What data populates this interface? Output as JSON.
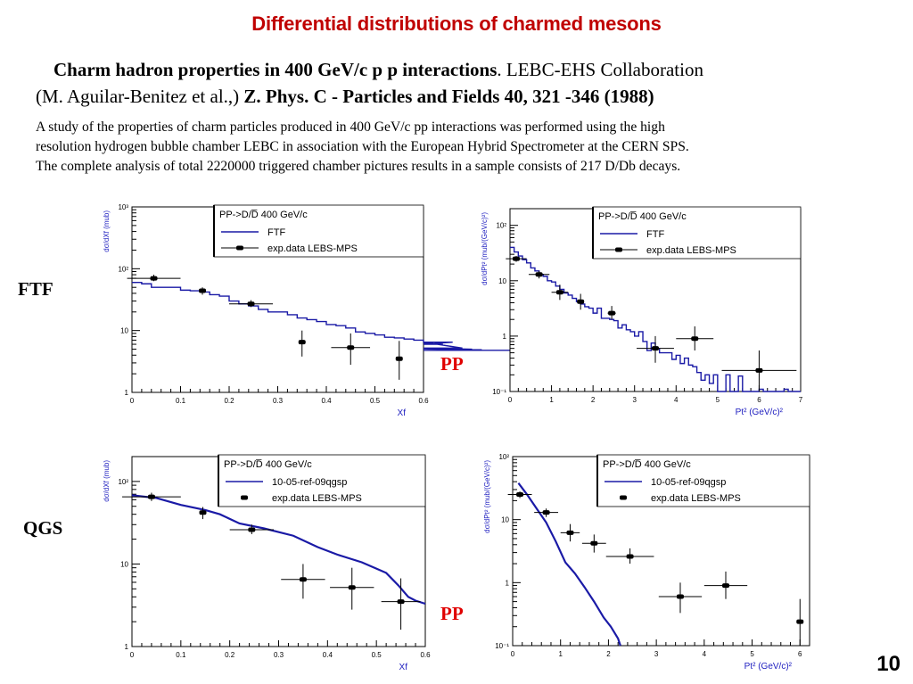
{
  "slide": {
    "title": "Differential distributions of charmed mesons",
    "reference": {
      "line1_bold": "Charm hadron properties in 400 GeV/c p p interactions",
      "line1_rest": ".  LEBC-EHS Collaboration",
      "line2_plain": "(M. Aguilar-Benitez et al.,) ",
      "line2_bold": "Z. Phys. C - Particles and Fields 40, 321 -346 (1988)"
    },
    "abstract": [
      "A study of the properties of charm particles produced in 400 GeV/c pp interactions was performed using the high",
      "resolution hydrogen bubble chamber LEBC in association with the European Hybrid Spectrometer at the CERN SPS.",
      "The complete analysis  of total 2220000 triggered chamber pictures results in a sample consists of 217 D/Db  decays."
    ],
    "row_labels": [
      "FTF",
      "QGS"
    ],
    "pp_labels": [
      "PP",
      "PP"
    ],
    "page_number": "10"
  },
  "colors": {
    "title": "#c00000",
    "pp_label": "#e00000",
    "model_line": "#1a1aa6",
    "axis_label": "#2020c0"
  },
  "chart_data": [
    {
      "id": "ftf-xf",
      "type": "line",
      "legend_title": "PP->D/D̅  400 GeV/c",
      "legend": [
        "FTF",
        "exp.data LEBS-MPS"
      ],
      "legend_placement": "top-right",
      "xlabel": "Xf",
      "ylabel": "dσ/dXf (mub)",
      "xlim": [
        0,
        0.6
      ],
      "ylim": [
        1,
        1000
      ],
      "yscale": "log",
      "xticks": [
        "0",
        "0.1",
        "0.2",
        "0.3",
        "0.4",
        "0.5",
        "0.6"
      ],
      "yticks": [
        {
          "v": 1,
          "label": "1"
        },
        {
          "v": 10,
          "label": "10"
        },
        {
          "v": 100,
          "label": "10²"
        },
        {
          "v": 1000,
          "label": "10³"
        }
      ],
      "series": [
        {
          "name": "FTF",
          "style": "histogram",
          "bin_width": 0.02,
          "values": [
            60,
            57,
            50,
            50,
            50,
            45,
            44,
            42,
            38,
            36,
            30,
            27,
            25,
            22,
            20,
            20,
            18,
            16,
            15,
            14,
            12.5,
            12,
            11,
            9.5,
            9,
            8.5,
            7.8,
            7.6,
            7.3,
            7.0,
            6.5,
            6.3,
            6.0,
            6.5,
            5.2,
            5.0,
            4.9,
            4.8,
            4.8,
            4.8
          ]
        },
        {
          "name": "exp.data LEBS-MPS",
          "style": "points",
          "points": [
            {
              "x": 0.045,
              "y": 70,
              "xerr": 0.055,
              "ylo": 63,
              "yhi": 80
            },
            {
              "x": 0.145,
              "y": 44,
              "xerr": 0.0,
              "ylo": 38,
              "yhi": 50
            },
            {
              "x": 0.245,
              "y": 27,
              "xerr": 0.045,
              "ylo": 24,
              "yhi": 31
            },
            {
              "x": 0.35,
              "y": 6.5,
              "xerr": 0.0,
              "ylo": 3.8,
              "yhi": 10.0
            },
            {
              "x": 0.45,
              "y": 5.3,
              "xerr": 0.04,
              "ylo": 2.8,
              "yhi": 9.0
            },
            {
              "x": 0.55,
              "y": 3.5,
              "xerr": 0.0,
              "ylo": 1.6,
              "yhi": 6.8
            }
          ]
        }
      ]
    },
    {
      "id": "ftf-pt2",
      "type": "line",
      "legend_title": "PP->D/D̅  400 GeV/c",
      "legend": [
        "FTF",
        "exp.data LEBS-MPS"
      ],
      "legend_placement": "top-right",
      "xlabel": "Pt² (GeV/c)²",
      "ylabel": "dσ/dPt² (mub/(GeV/c)²)",
      "xlim": [
        0,
        7
      ],
      "ylim": [
        0.1,
        200
      ],
      "yscale": "log",
      "xticks": [
        "0",
        "1",
        "2",
        "3",
        "4",
        "5",
        "6",
        "7"
      ],
      "yticks": [
        {
          "v": 0.1,
          "label": "10⁻¹"
        },
        {
          "v": 1,
          "label": "1"
        },
        {
          "v": 10,
          "label": "10"
        },
        {
          "v": 100,
          "label": "10²"
        }
      ],
      "series": [
        {
          "name": "FTF",
          "style": "histogram",
          "bin_width": 0.1,
          "values": [
            40,
            33,
            28,
            24,
            21,
            17,
            15,
            13,
            12,
            10,
            9.5,
            8,
            7,
            6,
            5.5,
            4.8,
            4.2,
            3.8,
            3.4,
            3.2,
            2.6,
            3.2,
            2.1,
            2.1,
            2.0,
            1.9,
            1.4,
            1.6,
            1.3,
            1.2,
            1.0,
            1.2,
            0.8,
            0.55,
            0.75,
            0.6,
            0.5,
            0.5,
            0.5,
            0.38,
            0.45,
            0.32,
            0.4,
            0.3,
            0.28,
            0.22,
            0.16,
            0.2,
            0.14,
            0.2,
            0.1,
            0.1,
            0.2,
            0.1,
            0.1,
            0.19,
            0.1,
            0.1,
            0.1,
            0.1,
            0.11,
            0.1,
            0.1,
            0.1,
            0.1,
            0.1,
            0.11,
            0.1,
            0.1,
            0.1
          ]
        },
        {
          "name": "exp.data LEBS-MPS",
          "style": "points",
          "points": [
            {
              "x": 0.15,
              "y": 25,
              "xerr": 0.25,
              "ylo": 22,
              "yhi": 28
            },
            {
              "x": 0.7,
              "y": 13,
              "xerr": 0.25,
              "ylo": 11,
              "yhi": 15
            },
            {
              "x": 1.2,
              "y": 6.2,
              "xerr": 0.2,
              "ylo": 4.5,
              "yhi": 8.5
            },
            {
              "x": 1.7,
              "y": 4.2,
              "xerr": 0.0,
              "ylo": 3.0,
              "yhi": 5.8
            },
            {
              "x": 2.45,
              "y": 2.6,
              "xerr": 0.1,
              "ylo": 2.0,
              "yhi": 3.5
            },
            {
              "x": 3.5,
              "y": 0.6,
              "xerr": 0.45,
              "ylo": 0.33,
              "yhi": 1.0
            },
            {
              "x": 4.45,
              "y": 0.9,
              "xerr": 0.45,
              "ylo": 0.55,
              "yhi": 1.5
            },
            {
              "x": 6.0,
              "y": 0.24,
              "xerr": 0.9,
              "ylo": 0.1,
              "yhi": 0.55
            }
          ]
        }
      ]
    },
    {
      "id": "qgs-xf",
      "type": "line",
      "legend_title": "PP->D/D̅  400 GeV/c",
      "legend": [
        "10-05-ref-09qgsp",
        "exp.data LEBS-MPS"
      ],
      "legend_placement": "top-right",
      "xlabel": "Xf",
      "ylabel": "dσ/dXf (mub)",
      "xlim": [
        0,
        0.6
      ],
      "ylim": [
        1,
        200
      ],
      "yscale": "log",
      "xticks": [
        "0",
        "0.1",
        "0.2",
        "0.3",
        "0.4",
        "0.5",
        "0.6"
      ],
      "yticks": [
        {
          "v": 1,
          "label": "1"
        },
        {
          "v": 10,
          "label": "10"
        },
        {
          "v": 100,
          "label": "10²"
        }
      ],
      "series": [
        {
          "name": "10-05-ref-09qgsp",
          "style": "line",
          "points": [
            [
              0.0,
              68
            ],
            [
              0.05,
              63
            ],
            [
              0.1,
              52
            ],
            [
              0.15,
              45
            ],
            [
              0.18,
              40
            ],
            [
              0.22,
              31
            ],
            [
              0.27,
              27
            ],
            [
              0.33,
              22
            ],
            [
              0.38,
              16
            ],
            [
              0.42,
              13
            ],
            [
              0.47,
              10.5
            ],
            [
              0.52,
              7.8
            ],
            [
              0.545,
              5.5
            ],
            [
              0.565,
              4.0
            ],
            [
              0.58,
              3.6
            ],
            [
              0.6,
              3.3
            ]
          ]
        },
        {
          "name": "exp.data LEBS-MPS",
          "style": "points",
          "points": [
            {
              "x": 0.04,
              "y": 65,
              "xerr": 0.06,
              "ylo": 58,
              "yhi": 73
            },
            {
              "x": 0.145,
              "y": 42,
              "xerr": 0.0,
              "ylo": 35,
              "yhi": 49
            },
            {
              "x": 0.245,
              "y": 26,
              "xerr": 0.045,
              "ylo": 23,
              "yhi": 30
            },
            {
              "x": 0.35,
              "y": 6.5,
              "xerr": 0.045,
              "ylo": 3.8,
              "yhi": 10.0
            },
            {
              "x": 0.45,
              "y": 5.2,
              "xerr": 0.045,
              "ylo": 2.8,
              "yhi": 9.0
            },
            {
              "x": 0.55,
              "y": 3.5,
              "xerr": 0.04,
              "ylo": 1.6,
              "yhi": 6.7
            }
          ]
        }
      ]
    },
    {
      "id": "qgs-pt2",
      "type": "line",
      "legend_title": "PP->D/D̅  400 GeV/c",
      "legend": [
        "10-05-ref-09qgsp",
        "exp.data LEBS-MPS"
      ],
      "legend_placement": "top-right",
      "xlabel": "Pt² (GeV/c)²",
      "ylabel": "dσ/dPt² (mub/(GeV/c)²)",
      "xlim": [
        0,
        6.2
      ],
      "ylim": [
        0.1,
        100
      ],
      "yscale": "log",
      "xticks": [
        "0",
        "1",
        "2",
        "3",
        "4",
        "5",
        "6"
      ],
      "yticks": [
        {
          "v": 0.1,
          "label": "10⁻¹"
        },
        {
          "v": 1,
          "label": "1"
        },
        {
          "v": 10,
          "label": "10"
        },
        {
          "v": 100,
          "label": "10²"
        }
      ],
      "series": [
        {
          "name": "10-05-ref-09qgsp",
          "style": "line",
          "points": [
            [
              0.12,
              38
            ],
            [
              0.3,
              25
            ],
            [
              0.5,
              15
            ],
            [
              0.7,
              9
            ],
            [
              0.9,
              4.5
            ],
            [
              1.1,
              2.1
            ],
            [
              1.3,
              1.4
            ],
            [
              1.5,
              0.85
            ],
            [
              1.7,
              0.5
            ],
            [
              1.9,
              0.28
            ],
            [
              2.05,
              0.2
            ],
            [
              2.2,
              0.13
            ],
            [
              2.25,
              0.1
            ]
          ]
        },
        {
          "name": "exp.data LEBS-MPS",
          "style": "points",
          "points": [
            {
              "x": 0.15,
              "y": 25,
              "xerr": 0.25,
              "ylo": 22,
              "yhi": 28
            },
            {
              "x": 0.7,
              "y": 13,
              "xerr": 0.25,
              "ylo": 11,
              "yhi": 15
            },
            {
              "x": 1.2,
              "y": 6.2,
              "xerr": 0.2,
              "ylo": 4.5,
              "yhi": 8.5
            },
            {
              "x": 1.7,
              "y": 4.2,
              "xerr": 0.25,
              "ylo": 3.0,
              "yhi": 5.8
            },
            {
              "x": 2.45,
              "y": 2.6,
              "xerr": 0.5,
              "ylo": 2.0,
              "yhi": 3.5
            },
            {
              "x": 3.5,
              "y": 0.6,
              "xerr": 0.45,
              "ylo": 0.33,
              "yhi": 1.0
            },
            {
              "x": 4.45,
              "y": 0.9,
              "xerr": 0.45,
              "ylo": 0.55,
              "yhi": 1.5
            },
            {
              "x": 6.0,
              "y": 0.24,
              "xerr": 0.0,
              "ylo": 0.1,
              "yhi": 0.55
            }
          ]
        }
      ]
    }
  ]
}
